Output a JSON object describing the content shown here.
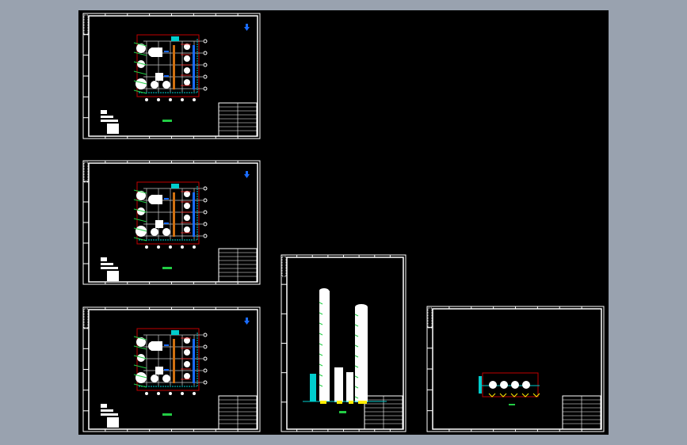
{
  "viewer": {
    "background_color": "#99a2af",
    "canvas_color": "#000000"
  },
  "colors": {
    "frame": "#ffffff",
    "boundary": "#c00000",
    "grid": "#c8c8c8",
    "equipment": "#ffffff",
    "pipe_green": "#22cc44",
    "cyan": "#00cccc",
    "blue": "#1a6cff",
    "orange": "#d07010",
    "yellow": "#ffee00",
    "red": "#ff2020"
  },
  "icons": [
    "north-arrow-icon"
  ]
}
